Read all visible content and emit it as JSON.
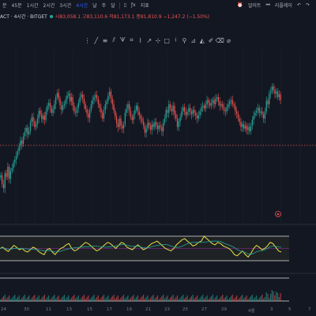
{
  "toolbar": {
    "chart_type_label": "분",
    "timeframes": [
      "45분",
      "1시간",
      "2시간",
      "3시간",
      "4시간",
      "날",
      "주",
      "달"
    ],
    "active_timeframe_index": 4,
    "indicators_label": "지표",
    "alert_label": "얼러트",
    "replay_label": "리플레이",
    "undo_label": "↶",
    "redo_label": "↷"
  },
  "legend": {
    "symbol": "ACT · 4시간 · BITGET",
    "open_label": "시",
    "open": "83,058.1",
    "high_label": "고",
    "high": "83,110.6",
    "low_label": "저",
    "low": "81,173.1",
    "close_label": "종",
    "close": "81,810.9",
    "change": "−1,247.2 (−1.50%)"
  },
  "drawing_tools": [
    "cursor-icon",
    "trend-line-icon",
    "horizontal-ray-icon",
    "channel-icon",
    "pitchfork-icon",
    "fib-icon",
    "shapes-icon",
    "brush-icon",
    "text-icon",
    "pattern-icon",
    "prediction-icon",
    "measure-icon",
    "zoom-icon",
    "magnet-icon",
    "lock-icon",
    "eye-icon",
    "trash-icon"
  ],
  "x_axis_labels": [
    "24",
    "30",
    "11",
    "13",
    "15",
    "17",
    "19",
    "21",
    "23",
    "25",
    "27",
    "29",
    "4월",
    "3",
    "5",
    "7"
  ],
  "colors": {
    "up": "#26a69a",
    "down": "#ef5350",
    "rsi_line": "#e8e14a",
    "accent": "#2962ff",
    "price_line": "#ef5350"
  },
  "chart_data": {
    "type": "candlestick",
    "candles": [
      60,
      48,
      42,
      63,
      58,
      72,
      55,
      66,
      70,
      78,
      82,
      88,
      94,
      101,
      109,
      104,
      115,
      121,
      127,
      118,
      122,
      135,
      142,
      136,
      128,
      132,
      140,
      151,
      146,
      139,
      144,
      138,
      150,
      158,
      162,
      155,
      148,
      153,
      160,
      170,
      176,
      168,
      159,
      152,
      158,
      161,
      167,
      172,
      175,
      164,
      170,
      158,
      150,
      148,
      155,
      162,
      170,
      174,
      168,
      160,
      153,
      147,
      141,
      152,
      160,
      166,
      170,
      173,
      168,
      160,
      155,
      148,
      140,
      152,
      160,
      164,
      172,
      178,
      168,
      160,
      151,
      143,
      133,
      128,
      140,
      130,
      126,
      132,
      148,
      154,
      160,
      151,
      142,
      138,
      146,
      152,
      158,
      150,
      144,
      140,
      136,
      130,
      120,
      126,
      134,
      130,
      124,
      132,
      128,
      135,
      131,
      125,
      130,
      128,
      122,
      134,
      140,
      152,
      148,
      160,
      154,
      150,
      158,
      146,
      140,
      128,
      136,
      142,
      150,
      156,
      150,
      145,
      149,
      155,
      150,
      146,
      152,
      148,
      144,
      140,
      145,
      150,
      156,
      158,
      154,
      160,
      166,
      162,
      158,
      162,
      166,
      160,
      168,
      170,
      164,
      158,
      160,
      156,
      152,
      150,
      156,
      160,
      164,
      166,
      160,
      158,
      150,
      147,
      140,
      135,
      128,
      132,
      126,
      130,
      124,
      128,
      122,
      130,
      138,
      144,
      148,
      151,
      155,
      148,
      150,
      146,
      140,
      150,
      165,
      160,
      175,
      178,
      185,
      180,
      175,
      178,
      170,
      174,
      166
    ],
    "notes": "values are relative price levels (oldest to newest), read approximately from the plot"
  },
  "rsi_data": {
    "values": [
      50,
      52,
      48,
      45,
      50,
      55,
      52,
      48,
      50,
      46,
      44,
      48,
      52,
      50,
      45,
      42,
      40,
      48,
      50,
      44,
      40,
      46,
      50,
      52,
      56,
      58,
      50,
      46,
      48,
      52,
      56,
      60,
      58,
      54,
      50,
      46,
      48,
      52,
      56,
      60,
      58,
      54,
      50,
      55,
      60,
      58,
      52,
      50,
      48,
      52,
      56,
      52,
      48,
      50,
      54,
      58,
      60,
      62,
      58,
      54,
      50,
      48,
      46,
      50,
      56,
      60,
      64,
      66,
      62,
      58,
      54,
      56,
      60,
      62,
      70,
      66,
      62,
      58,
      56,
      60,
      58,
      54,
      52,
      50,
      46,
      40,
      38,
      42,
      46,
      40,
      36,
      42,
      50,
      55,
      52,
      48,
      50,
      54,
      60,
      58,
      52,
      46,
      44
    ],
    "upper_band": 70,
    "lower_band": 30
  }
}
